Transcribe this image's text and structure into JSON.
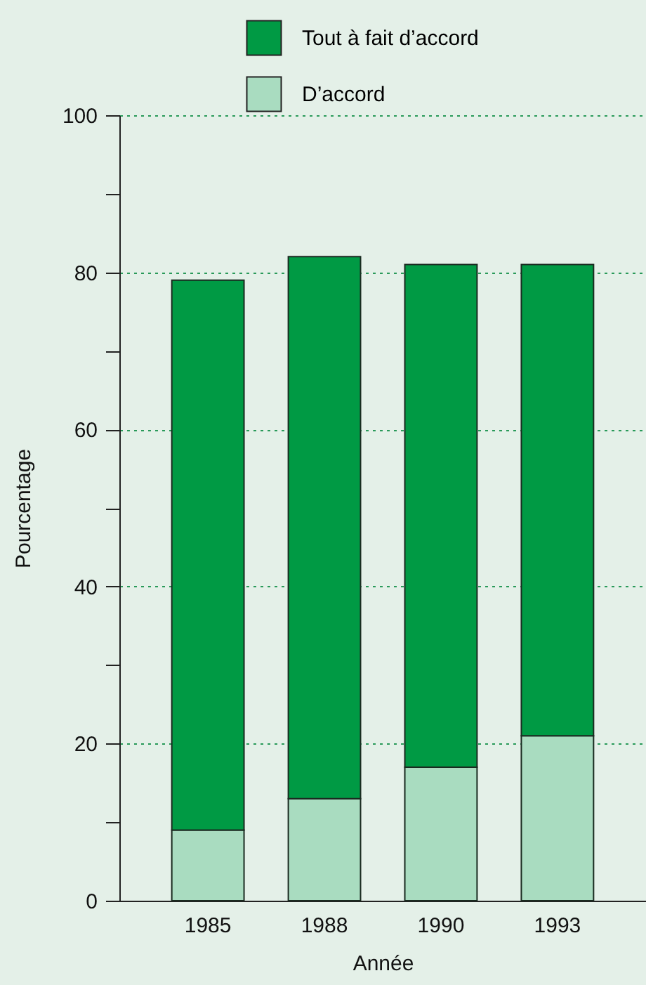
{
  "chart_data": {
    "type": "bar",
    "stacked": true,
    "xlabel": "Année",
    "ylabel": "Pourcentage",
    "categories": [
      "1985",
      "1988",
      "1990",
      "1993"
    ],
    "series": [
      {
        "name": "D’accord",
        "color": "#a9dcc0",
        "values": [
          9,
          13,
          17,
          21
        ]
      },
      {
        "name": "Tout à fait d’accord",
        "color": "#009a44",
        "values": [
          70,
          69,
          64,
          60
        ]
      }
    ],
    "ylim": [
      0,
      100
    ],
    "yticks": [
      0,
      {
        "value": 10,
        "label": null
      },
      20,
      {
        "value": 30,
        "label": null
      },
      40,
      {
        "value": 50,
        "label": null
      },
      60,
      {
        "value": 70,
        "label": null
      },
      80,
      {
        "value": 90,
        "label": null
      },
      100
    ],
    "grid": "y",
    "legend": "top right"
  }
}
